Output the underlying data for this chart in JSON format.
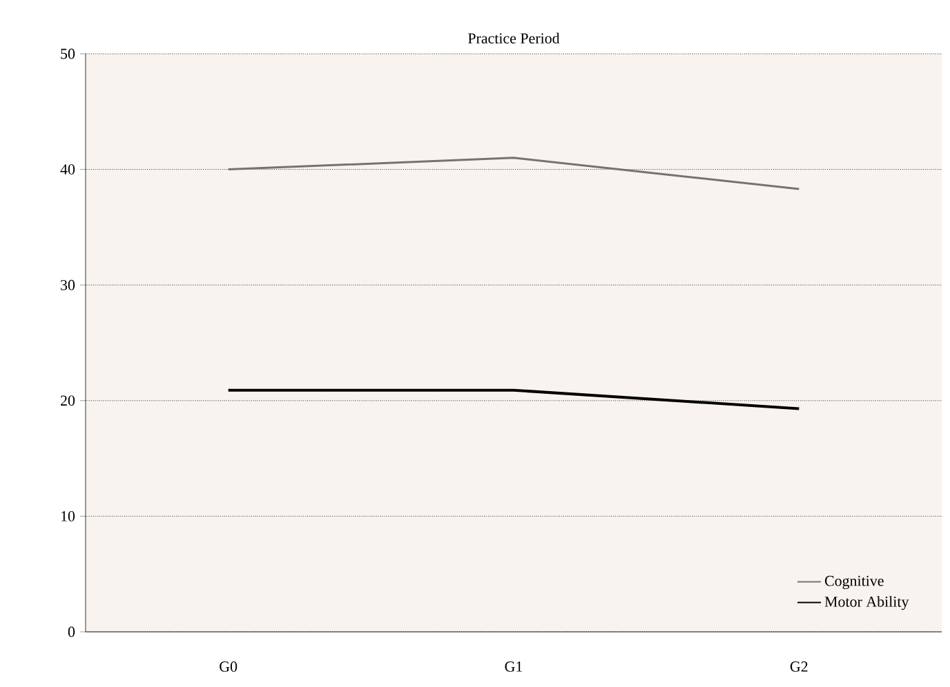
{
  "chart_data": {
    "type": "line",
    "title": "Practice Period",
    "categories": [
      "G0",
      "G1",
      "G2"
    ],
    "series": [
      {
        "name": "Cognitive",
        "color": "#737373",
        "values": [
          40,
          41,
          38.3
        ]
      },
      {
        "name": "Motor Ability",
        "color": "#000000",
        "values": [
          20.9,
          20.9,
          19.3
        ]
      }
    ],
    "ylim": [
      0,
      50
    ],
    "yticks": [
      0,
      10,
      20,
      30,
      40,
      50
    ],
    "grid": "y",
    "legend": "bottom right",
    "marker": "none",
    "line_style": "solid"
  }
}
